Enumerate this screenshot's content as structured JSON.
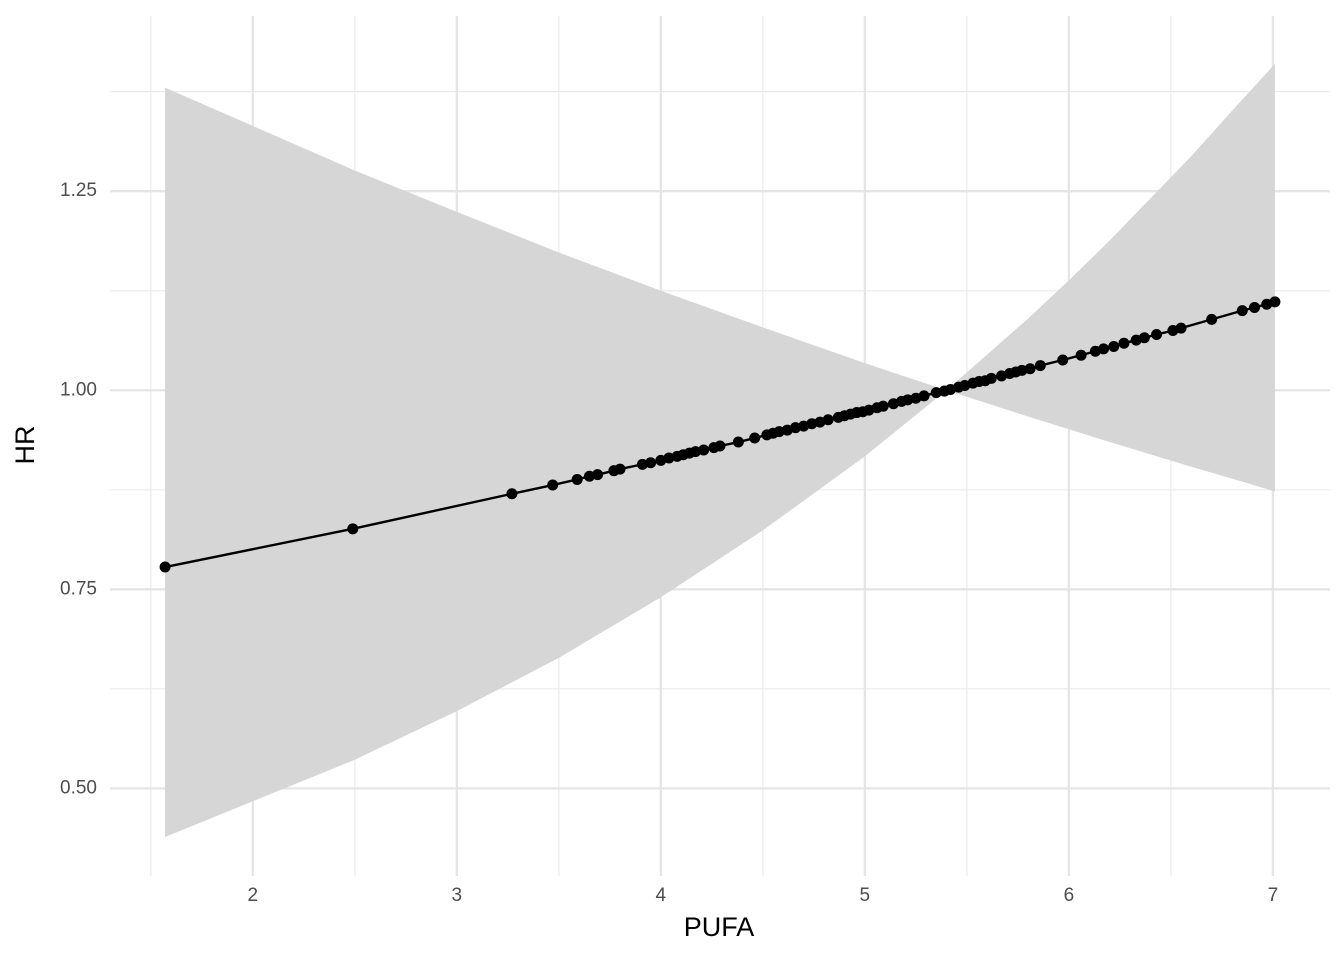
{
  "chart_data": {
    "type": "line",
    "x_label": "PUFA",
    "y_label": "HR",
    "x": [
      1.57,
      2.49,
      3.27,
      3.47,
      3.59,
      3.65,
      3.69,
      3.77,
      3.8,
      3.91,
      3.95,
      4.0,
      4.04,
      4.08,
      4.11,
      4.14,
      4.17,
      4.21,
      4.26,
      4.29,
      4.38,
      4.46,
      4.52,
      4.55,
      4.58,
      4.62,
      4.66,
      4.7,
      4.74,
      4.78,
      4.82,
      4.87,
      4.9,
      4.93,
      4.96,
      4.99,
      5.02,
      5.06,
      5.09,
      5.14,
      5.18,
      5.21,
      5.25,
      5.29,
      5.35,
      5.39,
      5.42,
      5.46,
      5.49,
      5.53,
      5.56,
      5.59,
      5.62,
      5.67,
      5.71,
      5.74,
      5.77,
      5.81,
      5.86,
      5.97,
      6.06,
      6.13,
      6.17,
      6.22,
      6.27,
      6.33,
      6.37,
      6.43,
      6.51,
      6.55,
      6.7,
      6.85,
      6.91,
      6.97,
      7.01
    ],
    "series": [
      {
        "color": "#000000",
        "values": [
          0.778,
          0.826,
          0.87,
          0.881,
          0.888,
          0.892,
          0.894,
          0.899,
          0.901,
          0.907,
          0.909,
          0.912,
          0.915,
          0.917,
          0.919,
          0.921,
          0.923,
          0.925,
          0.928,
          0.93,
          0.935,
          0.94,
          0.944,
          0.946,
          0.948,
          0.95,
          0.953,
          0.955,
          0.958,
          0.96,
          0.963,
          0.966,
          0.968,
          0.97,
          0.972,
          0.973,
          0.975,
          0.978,
          0.98,
          0.983,
          0.986,
          0.988,
          0.99,
          0.993,
          0.997,
          0.999,
          1.001,
          1.004,
          1.006,
          1.009,
          1.011,
          1.012,
          1.015,
          1.018,
          1.021,
          1.023,
          1.025,
          1.027,
          1.031,
          1.038,
          1.044,
          1.049,
          1.052,
          1.055,
          1.059,
          1.063,
          1.066,
          1.07,
          1.075,
          1.078,
          1.089,
          1.1,
          1.104,
          1.108,
          1.111
        ]
      }
    ],
    "band": {
      "color": "#d6d6d6",
      "x": [
        1.57,
        2.5,
        3.0,
        3.5,
        4.0,
        4.5,
        5.0,
        5.4,
        5.8,
        6.0,
        6.2,
        6.6,
        6.8,
        7.01
      ],
      "lower": [
        0.439,
        0.536,
        0.597,
        0.664,
        0.74,
        0.824,
        0.917,
        1.0,
        0.967,
        0.951,
        0.935,
        0.904,
        0.889,
        0.873
      ],
      "upper": [
        1.38,
        1.276,
        1.224,
        1.173,
        1.125,
        1.079,
        1.034,
        1.0,
        1.09,
        1.138,
        1.188,
        1.294,
        1.351,
        1.41
      ]
    },
    "xlim": [
      1.3,
      7.28
    ],
    "ylim": [
      1.47,
      0.39
    ],
    "xticks": [
      2,
      3,
      4,
      5,
      6,
      7
    ],
    "yticks": [
      {
        "value": 0.5,
        "label": "0.50"
      },
      {
        "value": 0.75,
        "label": "0.75"
      },
      {
        "value": 1.0,
        "label": "1.00"
      },
      {
        "value": 1.25,
        "label": "1.25"
      }
    ],
    "x_minor_ticks": [
      1.5,
      2.5,
      3.5,
      4.5,
      5.5,
      6.5
    ],
    "y_minor_ticks": [
      0.625,
      0.875,
      1.125,
      1.375
    ],
    "grid": true
  }
}
